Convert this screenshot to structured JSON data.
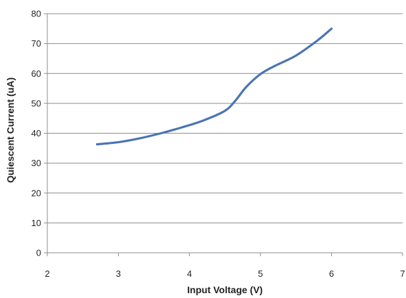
{
  "chart_data": {
    "type": "line",
    "title": "",
    "xlabel": "Input Voltage (V)",
    "ylabel": "Quiescent Current (uA)",
    "xlim": [
      2,
      7
    ],
    "ylim": [
      0,
      80
    ],
    "x_ticks": [
      "2",
      "3",
      "4",
      "5",
      "6",
      "7"
    ],
    "y_ticks": [
      "0",
      "10",
      "20",
      "30",
      "40",
      "50",
      "60",
      "70",
      "80"
    ],
    "grid": "horizontal",
    "legend": "none",
    "series": [
      {
        "color": "#4a74b4",
        "x": [
          2.7,
          3.0,
          3.3,
          3.6,
          3.9,
          4.2,
          4.5,
          4.65,
          4.8,
          5.0,
          5.2,
          5.5,
          5.8,
          6.0
        ],
        "y": [
          36.3,
          37.0,
          38.3,
          40.0,
          42.0,
          44.3,
          47.5,
          51.0,
          55.5,
          59.8,
          62.5,
          66.0,
          71.0,
          75.0
        ]
      }
    ]
  }
}
